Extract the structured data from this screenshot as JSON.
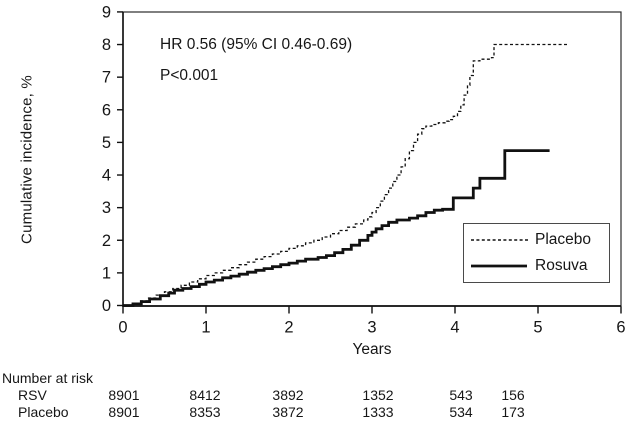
{
  "chart_data": {
    "type": "line",
    "subtype": "kaplan-meier-step",
    "xlabel": "Years",
    "ylabel": "Cumulative incidence, %",
    "xlim": [
      0,
      6
    ],
    "ylim": [
      0,
      9
    ],
    "x_ticks": [
      "0",
      "1",
      "2",
      "3",
      "4",
      "5",
      "6"
    ],
    "y_ticks": [
      "0",
      "1",
      "2",
      "3",
      "4",
      "5",
      "6",
      "7",
      "8",
      "9"
    ],
    "grid": false,
    "legend_position": "lower-right",
    "annotations": [
      "HR 0.56 (95% CI 0.46-0.69)",
      "P<0.001"
    ],
    "line_color": "#111111",
    "series": [
      {
        "name": "Placebo",
        "style": "dashed",
        "points": [
          [
            0,
            0
          ],
          [
            0.1,
            0.06
          ],
          [
            0.2,
            0.14
          ],
          [
            0.3,
            0.23
          ],
          [
            0.4,
            0.32
          ],
          [
            0.5,
            0.42
          ],
          [
            0.6,
            0.52
          ],
          [
            0.7,
            0.62
          ],
          [
            0.8,
            0.72
          ],
          [
            0.9,
            0.82
          ],
          [
            1.0,
            0.92
          ],
          [
            1.1,
            1.0
          ],
          [
            1.2,
            1.08
          ],
          [
            1.3,
            1.16
          ],
          [
            1.4,
            1.25
          ],
          [
            1.5,
            1.33
          ],
          [
            1.6,
            1.42
          ],
          [
            1.7,
            1.5
          ],
          [
            1.8,
            1.58
          ],
          [
            1.9,
            1.66
          ],
          [
            2.0,
            1.75
          ],
          [
            2.1,
            1.83
          ],
          [
            2.2,
            1.92
          ],
          [
            2.3,
            2.0
          ],
          [
            2.4,
            2.1
          ],
          [
            2.5,
            2.2
          ],
          [
            2.6,
            2.3
          ],
          [
            2.7,
            2.4
          ],
          [
            2.8,
            2.5
          ],
          [
            2.9,
            2.62
          ],
          [
            2.95,
            2.72
          ],
          [
            3.0,
            2.85
          ],
          [
            3.05,
            3.0
          ],
          [
            3.1,
            3.2
          ],
          [
            3.15,
            3.4
          ],
          [
            3.2,
            3.6
          ],
          [
            3.25,
            3.8
          ],
          [
            3.3,
            4.0
          ],
          [
            3.35,
            4.25
          ],
          [
            3.4,
            4.5
          ],
          [
            3.45,
            4.75
          ],
          [
            3.5,
            5.0
          ],
          [
            3.55,
            5.25
          ],
          [
            3.6,
            5.42
          ],
          [
            3.65,
            5.5
          ],
          [
            3.72,
            5.55
          ],
          [
            3.8,
            5.6
          ],
          [
            3.88,
            5.65
          ],
          [
            3.93,
            5.7
          ],
          [
            3.98,
            5.8
          ],
          [
            4.03,
            5.95
          ],
          [
            4.07,
            6.15
          ],
          [
            4.11,
            6.45
          ],
          [
            4.15,
            6.75
          ],
          [
            4.18,
            7.05
          ],
          [
            4.22,
            7.5
          ],
          [
            4.3,
            7.55
          ],
          [
            4.44,
            7.6
          ],
          [
            4.47,
            8.0
          ],
          [
            5.36,
            8.0
          ]
        ]
      },
      {
        "name": "Rosuva",
        "style": "solid",
        "points": [
          [
            0,
            0
          ],
          [
            0.12,
            0.05
          ],
          [
            0.22,
            0.12
          ],
          [
            0.32,
            0.2
          ],
          [
            0.45,
            0.3
          ],
          [
            0.55,
            0.38
          ],
          [
            0.62,
            0.47
          ],
          [
            0.72,
            0.52
          ],
          [
            0.82,
            0.58
          ],
          [
            0.92,
            0.65
          ],
          [
            1.0,
            0.72
          ],
          [
            1.1,
            0.78
          ],
          [
            1.2,
            0.85
          ],
          [
            1.3,
            0.9
          ],
          [
            1.4,
            0.96
          ],
          [
            1.5,
            1.02
          ],
          [
            1.6,
            1.08
          ],
          [
            1.7,
            1.13
          ],
          [
            1.8,
            1.19
          ],
          [
            1.9,
            1.25
          ],
          [
            2.0,
            1.3
          ],
          [
            2.1,
            1.36
          ],
          [
            2.2,
            1.42
          ],
          [
            2.35,
            1.47
          ],
          [
            2.45,
            1.53
          ],
          [
            2.55,
            1.62
          ],
          [
            2.65,
            1.72
          ],
          [
            2.75,
            1.85
          ],
          [
            2.85,
            2.0
          ],
          [
            2.95,
            2.15
          ],
          [
            3.0,
            2.25
          ],
          [
            3.05,
            2.35
          ],
          [
            3.12,
            2.45
          ],
          [
            3.2,
            2.55
          ],
          [
            3.3,
            2.62
          ],
          [
            3.45,
            2.68
          ],
          [
            3.55,
            2.75
          ],
          [
            3.65,
            2.85
          ],
          [
            3.75,
            2.92
          ],
          [
            3.85,
            2.95
          ],
          [
            3.98,
            3.3
          ],
          [
            4.22,
            3.6
          ],
          [
            4.3,
            3.9
          ],
          [
            4.6,
            4.75
          ],
          [
            5.14,
            4.75
          ]
        ]
      }
    ]
  },
  "legend": {
    "items": [
      {
        "label": "Placebo",
        "line_style": "dashed"
      },
      {
        "label": "Rosuva",
        "line_style": "solid"
      }
    ]
  },
  "number_at_risk": {
    "heading": "Number at risk",
    "rows": [
      {
        "label": "RSV",
        "values": [
          "8901",
          "8412",
          "3892",
          "1352",
          "543",
          "156"
        ]
      },
      {
        "label": "Placebo",
        "values": [
          "8901",
          "8353",
          "3872",
          "1333",
          "534",
          "173"
        ]
      }
    ]
  }
}
